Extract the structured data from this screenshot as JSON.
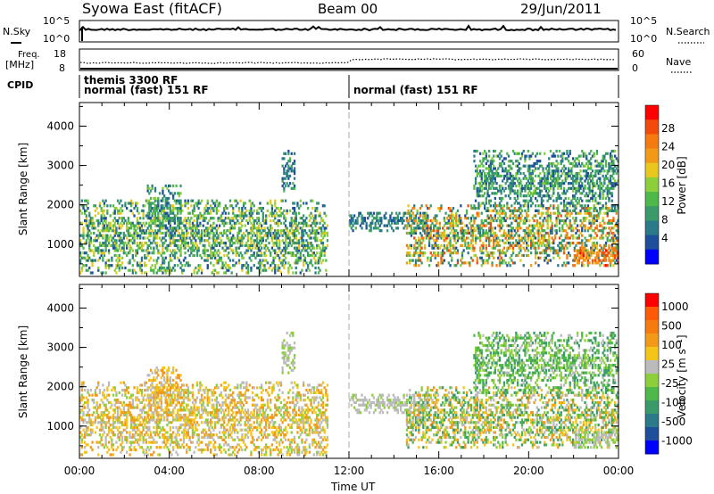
{
  "header": {
    "station": "Syowa East (fitACF)",
    "beam": "Beam 00",
    "date": "29/Jun/2011"
  },
  "noise_panel": {
    "left_label": "N.Sky",
    "right_label": "N.Search",
    "left_ticks": [
      "10^5",
      "10^0"
    ],
    "right_ticks": [
      "10^5",
      "10^0"
    ]
  },
  "freq_panel": {
    "left_label_line1": "Freq.",
    "left_label_line2": "[MHz]",
    "right_label": "Nave",
    "left_ticks": [
      "18",
      "8"
    ],
    "right_ticks": [
      "60",
      "0"
    ]
  },
  "cpid_panel": {
    "label": "CPID",
    "segments": [
      {
        "start_h": 0,
        "end_h": 12,
        "lines": [
          "themis 3300 RF",
          "normal (fast) 151 RF"
        ]
      },
      {
        "start_h": 12,
        "end_h": 24,
        "lines": [
          "normal (fast) 151 RF"
        ]
      }
    ]
  },
  "axes": {
    "xlabel": "Time UT",
    "x_ticks": [
      "00:00",
      "04:00",
      "08:00",
      "12:00",
      "16:00",
      "20:00",
      "00:00"
    ],
    "ylabel": "Slant Range [km]",
    "y_ticks": [
      "4000",
      "3000",
      "2000",
      "1000"
    ]
  },
  "colors": {
    "power": [
      "#0000ff",
      "#1f4f9a",
      "#2a7a8a",
      "#3a9a6a",
      "#4fb84a",
      "#8ccf3a",
      "#e8c81e",
      "#f29a18",
      "#f57a10",
      "#f24a0a",
      "#ff0000"
    ],
    "velocity": [
      "#0000ff",
      "#1f4f9a",
      "#2a7a8a",
      "#3a9a6a",
      "#4fb84a",
      "#8ccf3a",
      "#bbbbbb",
      "#f5c418",
      "#f29a18",
      "#f57a10",
      "#ff5a08",
      "#ff0000"
    ]
  },
  "power_scale": {
    "label": "Power [dB]",
    "ticks": [
      "28",
      "24",
      "20",
      "16",
      "12",
      "8",
      "4"
    ]
  },
  "velocity_scale": {
    "label": "Velocity  [m s⁻¹]",
    "ticks": [
      "1000",
      "500",
      "100",
      "25",
      "-25",
      "-100",
      "-500",
      "-1000"
    ]
  },
  "chart_data": [
    {
      "type": "heatmap",
      "title": "Power",
      "xlabel": "Time UT",
      "ylabel": "Slant Range [km]",
      "xlim": [
        0,
        24
      ],
      "ylim": [
        180,
        4600
      ],
      "colorbar": {
        "label": "Power [dB]",
        "ticks": [
          4,
          8,
          12,
          16,
          20,
          24,
          28
        ],
        "range": [
          0,
          32
        ]
      },
      "echo_regions": [
        {
          "t": [
            0.0,
            11.0
          ],
          "range_km": [
            200,
            2100
          ],
          "power_db": [
            4,
            20
          ]
        },
        {
          "t": [
            3.0,
            4.5
          ],
          "range_km": [
            1200,
            2500
          ],
          "power_db": [
            4,
            16
          ]
        },
        {
          "t": [
            9.0,
            9.6
          ],
          "range_km": [
            2300,
            3400
          ],
          "power_db": [
            4,
            12
          ]
        },
        {
          "t": [
            12.0,
            15.5
          ],
          "range_km": [
            1300,
            1800
          ],
          "power_db": [
            4,
            12
          ]
        },
        {
          "t": [
            14.5,
            24.0
          ],
          "range_km": [
            400,
            2000
          ],
          "power_db": [
            4,
            28
          ]
        },
        {
          "t": [
            17.5,
            24.0
          ],
          "range_km": [
            1800,
            3400
          ],
          "power_db": [
            4,
            16
          ]
        },
        {
          "t": [
            22.0,
            24.0
          ],
          "range_km": [
            400,
            900
          ],
          "power_db": [
            20,
            30
          ]
        }
      ]
    },
    {
      "type": "heatmap",
      "title": "Velocity",
      "xlabel": "Time UT",
      "ylabel": "Slant Range [km]",
      "xlim": [
        0,
        24
      ],
      "ylim": [
        180,
        4600
      ],
      "colorbar": {
        "label": "Velocity [m s^-1]",
        "ticks": [
          1000,
          500,
          100,
          25,
          -25,
          -100,
          -500,
          -1000
        ]
      },
      "echo_regions": [
        {
          "t": [
            0.0,
            11.0
          ],
          "range_km": [
            200,
            2100
          ],
          "velocity_ms": [
            -500,
            100
          ]
        },
        {
          "t": [
            3.0,
            4.5
          ],
          "range_km": [
            1200,
            2500
          ],
          "velocity_ms": [
            -500,
            -25
          ]
        },
        {
          "t": [
            9.0,
            9.6
          ],
          "range_km": [
            2300,
            3400
          ],
          "velocity_ms": [
            -100,
            100
          ]
        },
        {
          "t": [
            12.0,
            15.5
          ],
          "range_km": [
            1300,
            1800
          ],
          "velocity_ms": [
            -100,
            25
          ]
        },
        {
          "t": [
            14.5,
            24.0
          ],
          "range_km": [
            400,
            2000
          ],
          "velocity_ms": [
            -500,
            500
          ]
        },
        {
          "t": [
            17.5,
            24.0
          ],
          "range_km": [
            1800,
            3400
          ],
          "velocity_ms": [
            -100,
            500
          ]
        },
        {
          "t": [
            22.0,
            24.0
          ],
          "range_km": [
            400,
            900
          ],
          "velocity_ms": [
            -100,
            100
          ]
        }
      ]
    }
  ]
}
